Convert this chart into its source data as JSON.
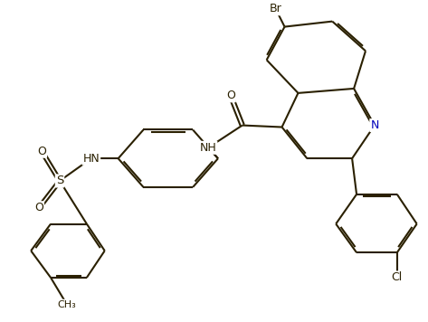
{
  "background_color": "#ffffff",
  "bond_color": "#2a2000",
  "atom_label_color": "#1a1a00",
  "N_color": "#0000bb",
  "line_width": 1.5,
  "figsize": [
    4.73,
    3.56
  ],
  "dpi": 100,
  "xlim": [
    0,
    10
  ],
  "ylim": [
    0,
    7.5
  ]
}
